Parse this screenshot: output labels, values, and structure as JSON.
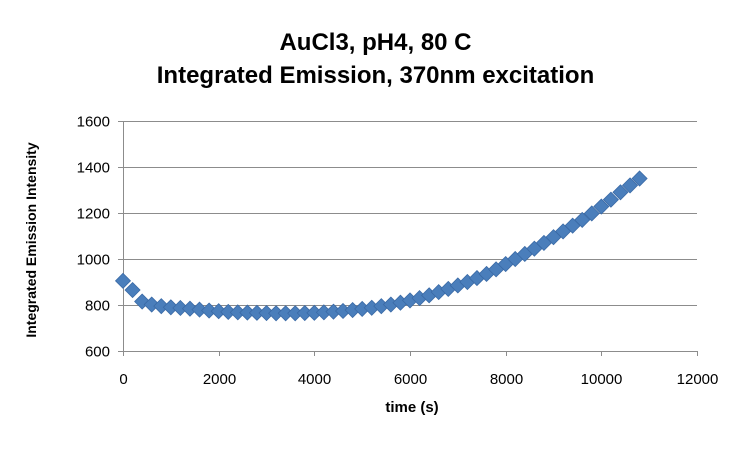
{
  "chart_data": {
    "type": "scatter",
    "title_lines": [
      "AuCl3, pH4, 80 C",
      "Integrated Emission, 370nm excitation"
    ],
    "xlabel": "time (s)",
    "ylabel": "Integrated Emission Intensity",
    "xlim": [
      0,
      12000
    ],
    "ylim": [
      600,
      1600
    ],
    "x_ticks": [
      0,
      2000,
      4000,
      6000,
      8000,
      10000,
      12000
    ],
    "y_ticks": [
      600,
      800,
      1000,
      1200,
      1400,
      1600
    ],
    "grid": "horizontal",
    "legend": "none",
    "marker": "diamond",
    "marker_color": "#4a7ebb",
    "series": [
      {
        "x": [
          0,
          200,
          400,
          600,
          800,
          1000,
          1200,
          1400,
          1600,
          1800,
          2000,
          2200,
          2400,
          2600,
          2800,
          3000,
          3200,
          3400,
          3600,
          3800,
          4000,
          4200,
          4400,
          4600,
          4800,
          5000,
          5200,
          5400,
          5600,
          5800,
          6000,
          6200,
          6400,
          6600,
          6800,
          7000,
          7200,
          7400,
          7600,
          7800,
          8000,
          8200,
          8400,
          8600,
          8800,
          9000,
          9200,
          9400,
          9600,
          9800,
          10000,
          10200,
          10400,
          10600,
          10800
        ],
        "y": [
          905,
          865,
          815,
          802,
          795,
          790,
          787,
          784,
          780,
          776,
          773,
          770,
          768,
          767,
          766,
          765,
          764,
          764,
          764,
          765,
          766,
          768,
          771,
          774,
          778,
          783,
          788,
          795,
          802,
          810,
          820,
          830,
          842,
          856,
          870,
          885,
          900,
          917,
          935,
          955,
          978,
          1000,
          1022,
          1045,
          1070,
          1095,
          1120,
          1145,
          1170,
          1198,
          1228,
          1258,
          1290,
          1320,
          1350
        ]
      }
    ]
  }
}
